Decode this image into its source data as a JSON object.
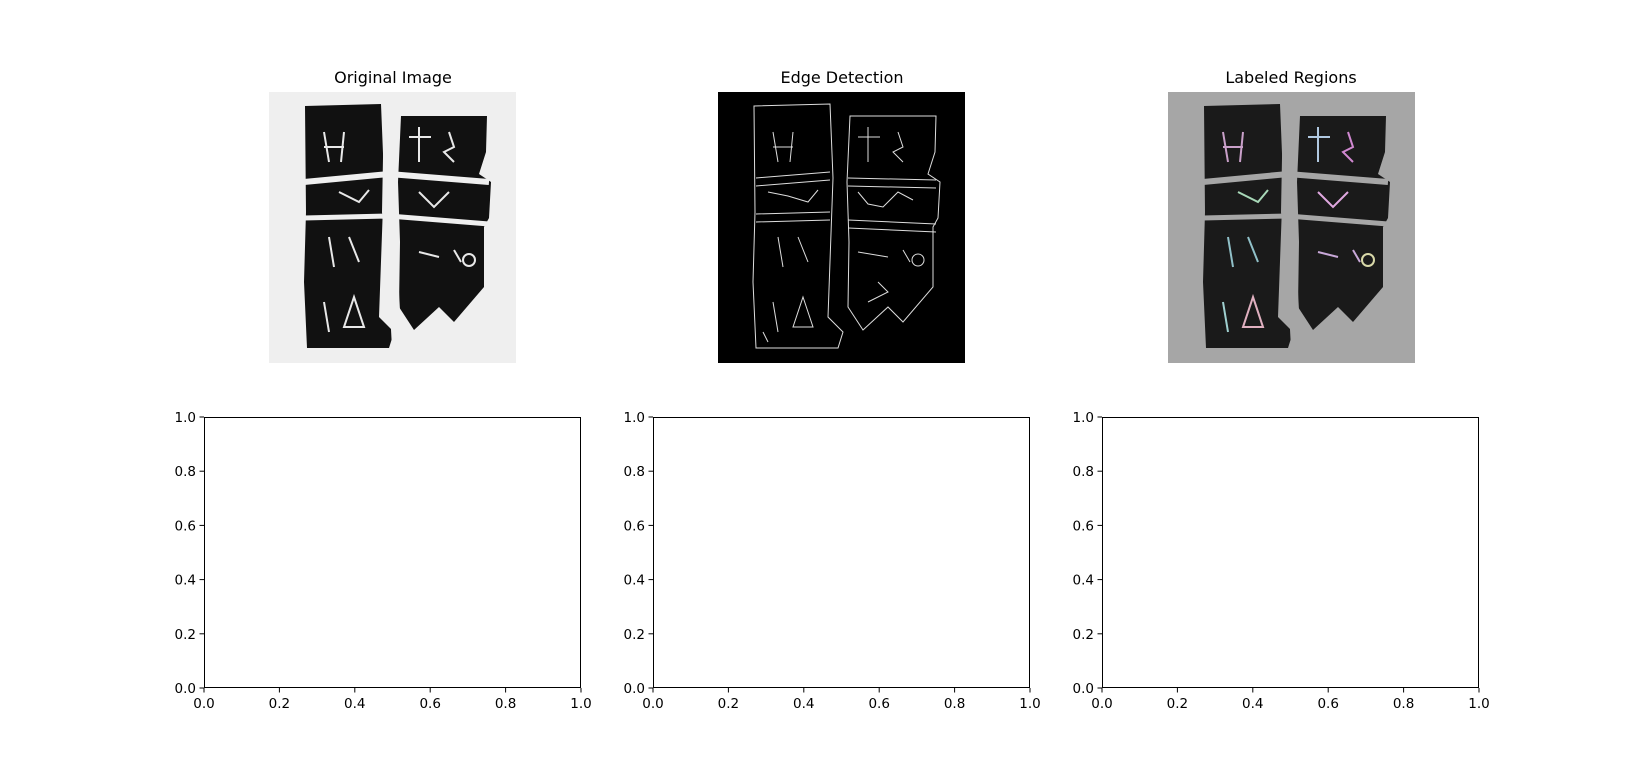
{
  "figure": {
    "panels": [
      {
        "id": "original",
        "title": "Original Image",
        "background": "#efefef",
        "ink": "#111111"
      },
      {
        "id": "edges",
        "title": "Edge Detection",
        "background": "#000000",
        "ink": "#dddddd"
      },
      {
        "id": "labeled",
        "title": "Labeled Regions",
        "background": "#a6a6a6",
        "ink": "#1a1a1a"
      }
    ]
  },
  "chart_data": [
    {
      "type": "scatter",
      "title": "",
      "xlabel": "",
      "ylabel": "",
      "xlim": [
        0,
        1
      ],
      "ylim": [
        0,
        1
      ],
      "xticks": [
        "0.0",
        "0.2",
        "0.4",
        "0.6",
        "0.8",
        "1.0"
      ],
      "yticks": [
        "0.0",
        "0.2",
        "0.4",
        "0.6",
        "0.8",
        "1.0"
      ],
      "series": []
    },
    {
      "type": "scatter",
      "title": "",
      "xlabel": "",
      "ylabel": "",
      "xlim": [
        0,
        1
      ],
      "ylim": [
        0,
        1
      ],
      "xticks": [
        "0.0",
        "0.2",
        "0.4",
        "0.6",
        "0.8",
        "1.0"
      ],
      "yticks": [
        "0.0",
        "0.2",
        "0.4",
        "0.6",
        "0.8",
        "1.0"
      ],
      "series": []
    },
    {
      "type": "scatter",
      "title": "",
      "xlabel": "",
      "ylabel": "",
      "xlim": [
        0,
        1
      ],
      "ylim": [
        0,
        1
      ],
      "xticks": [
        "0.0",
        "0.2",
        "0.4",
        "0.6",
        "0.8",
        "1.0"
      ],
      "yticks": [
        "0.0",
        "0.2",
        "0.4",
        "0.6",
        "0.8",
        "1.0"
      ],
      "series": []
    }
  ]
}
